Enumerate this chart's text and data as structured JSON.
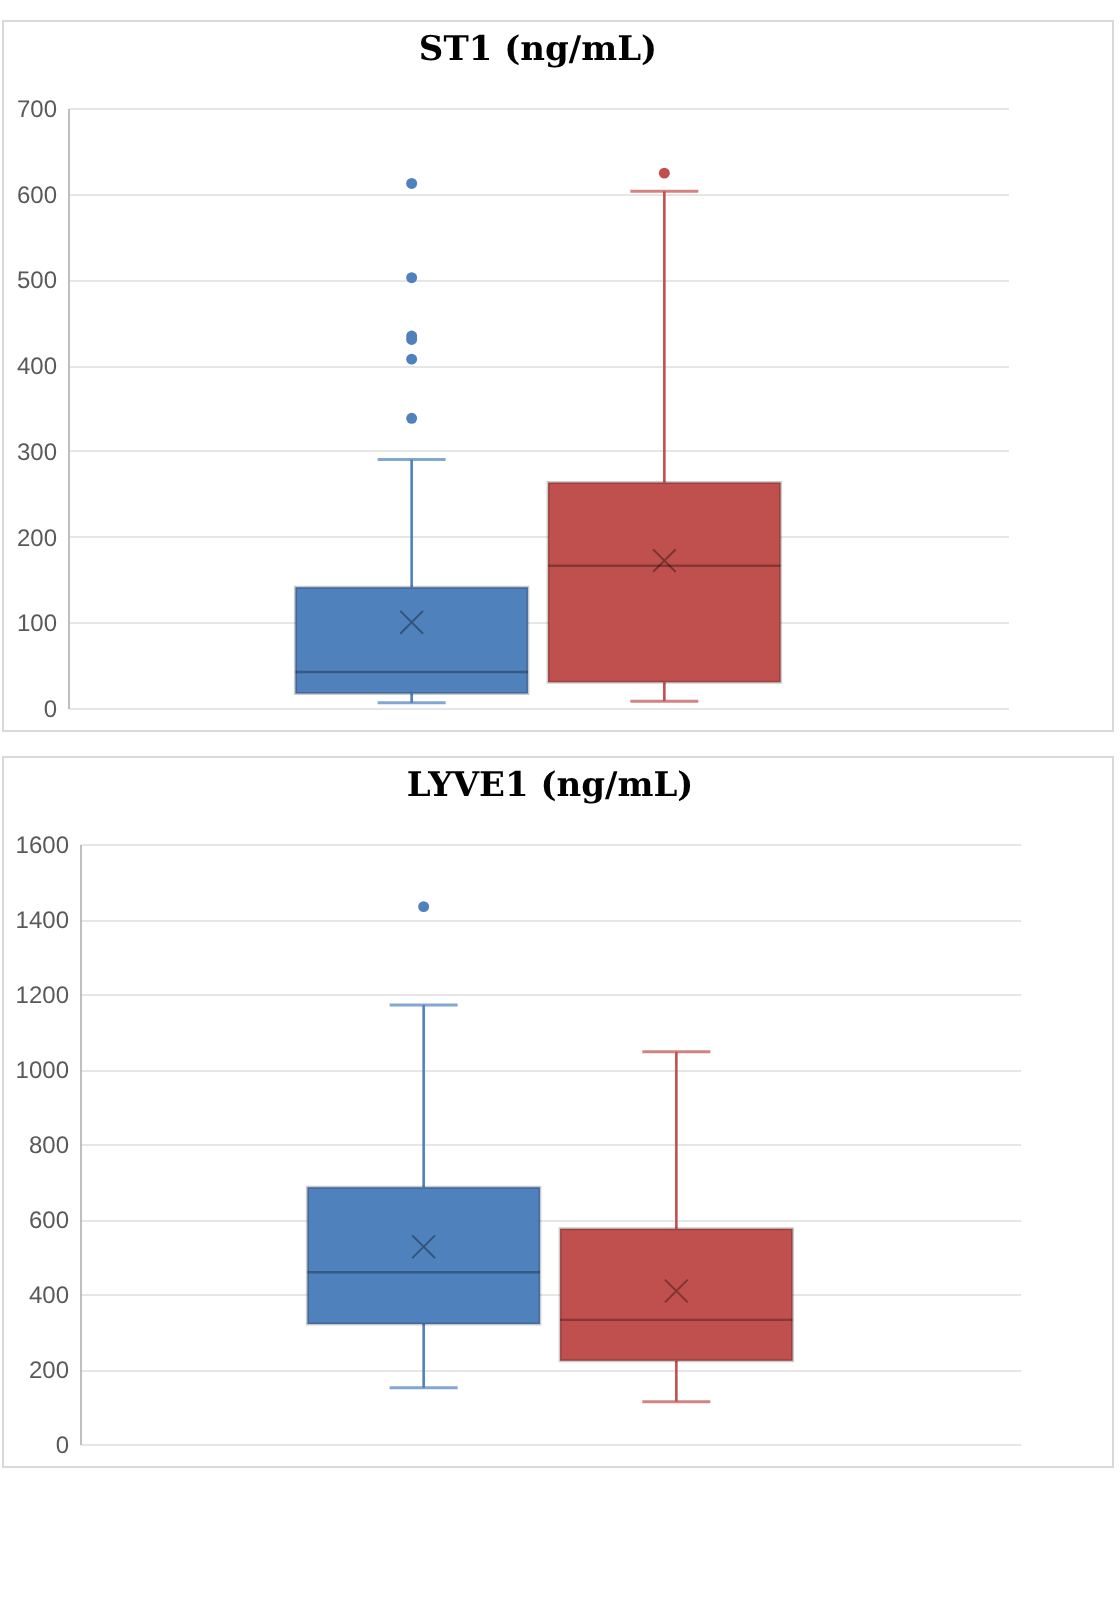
{
  "chart_data": [
    {
      "type": "box",
      "title": "ST1 (ng/mL)",
      "categories": [
        null
      ],
      "ylim": [
        0,
        700
      ],
      "yticks": [
        0,
        100,
        200,
        300,
        400,
        500,
        600,
        700
      ],
      "grid": "y",
      "series": [
        {
          "color": "#4f81bd",
          "boxes": [
            {
              "low": 6,
              "q1": 17,
              "median": 42,
              "q3": 141,
              "high": 290,
              "mean": 100,
              "outliers": [
                612,
                502,
                434,
                430,
                407,
                338
              ]
            }
          ]
        },
        {
          "color": "#c0504d",
          "boxes": [
            {
              "low": 8,
              "q1": 30,
              "median": 166,
              "q3": 263,
              "high": 603,
              "mean": 172,
              "outliers": [
                624
              ]
            }
          ]
        }
      ]
    },
    {
      "type": "box",
      "title": "LYVE1 (ng/mL)",
      "categories": [
        null
      ],
      "ylim": [
        0,
        1600
      ],
      "yticks": [
        0,
        200,
        400,
        600,
        800,
        1000,
        1200,
        1400,
        1600
      ],
      "grid": "y",
      "series": [
        {
          "color": "#4f81bd",
          "boxes": [
            {
              "low": 150,
              "q1": 320,
              "median": 458,
              "q3": 685,
              "high": 1171,
              "mean": 526,
              "outliers": [
                1433
              ]
            }
          ]
        },
        {
          "color": "#c0504d",
          "boxes": [
            {
              "low": 113,
              "q1": 222,
              "median": 331,
              "q3": 574,
              "high": 1046,
              "mean": 408
            }
          ]
        }
      ]
    }
  ]
}
